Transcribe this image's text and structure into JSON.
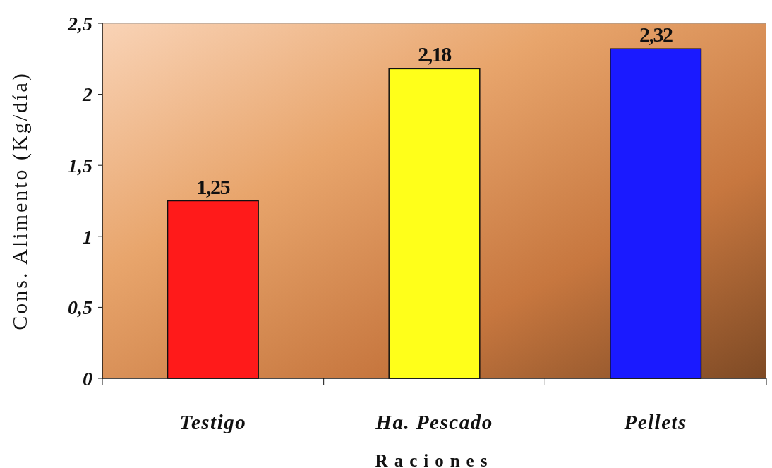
{
  "chart_data": {
    "type": "bar",
    "xlabel": "Raciones",
    "ylabel": "Cons. Alimento (Kg/día)",
    "categories": [
      "Testigo",
      "Ha. Pescado",
      "Pellets"
    ],
    "values": [
      1.25,
      2.18,
      2.32
    ],
    "colors": [
      "#ff1a1a",
      "#ffff1a",
      "#1a1aff"
    ],
    "value_labels": [
      "1,25",
      "2,18",
      "2,32"
    ],
    "ylim": [
      0,
      2.5
    ],
    "yticks": [
      {
        "value": 0,
        "label": "0"
      },
      {
        "value": 0.5,
        "label": "0,5"
      },
      {
        "value": 1,
        "label": "1"
      },
      {
        "value": 1.5,
        "label": "1,5"
      },
      {
        "value": 2,
        "label": "2"
      },
      {
        "value": 2.5,
        "label": "2,5"
      }
    ],
    "grid": false
  }
}
